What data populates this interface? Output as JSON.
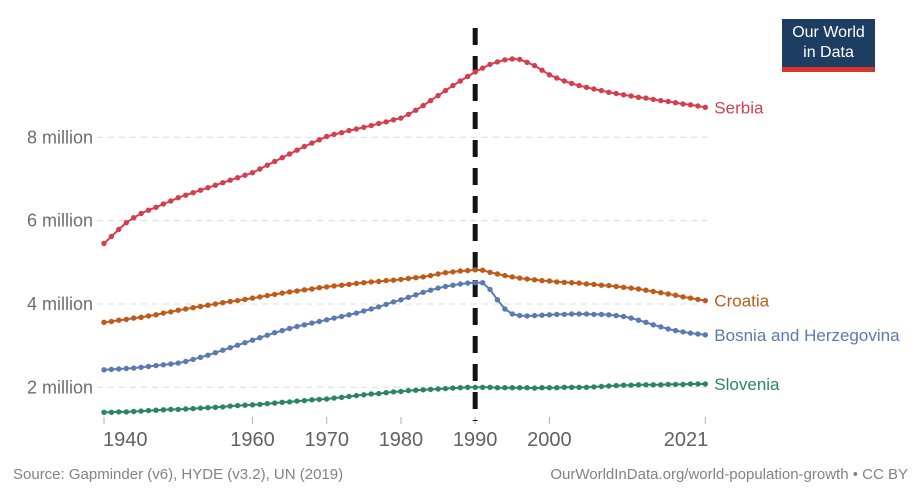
{
  "logo": {
    "line1": "Our World",
    "line2": "in Data",
    "bg": "#1d3d63",
    "accent": "#d8352a",
    "text_color": "#ffffff"
  },
  "footer": {
    "source": "Source: Gapminder (v6), HYDE (v3.2), UN (2019)",
    "attribution": "OurWorldInData.org/world-population-growth • CC BY"
  },
  "chart_data": {
    "type": "line",
    "title": "",
    "xlabel": "",
    "ylabel": "",
    "unit": "people (millions)",
    "grid": true,
    "legend_position": "end-of-line-labels",
    "x_range": [
      1940,
      2021
    ],
    "ylim_millions": [
      1.2,
      10.6
    ],
    "x_ticks": [
      1940,
      1960,
      1970,
      1980,
      1990,
      2000,
      2021
    ],
    "y_ticks": [
      {
        "value": 2,
        "label": "2 million"
      },
      {
        "value": 4,
        "label": "4 million"
      },
      {
        "value": 6,
        "label": "6 million"
      },
      {
        "value": 8,
        "label": "8 million"
      }
    ],
    "annotations": [
      {
        "type": "vline",
        "x": 1990,
        "style": "dashed",
        "color": "#141414"
      }
    ],
    "years": [
      1940,
      1941,
      1942,
      1943,
      1944,
      1945,
      1946,
      1947,
      1948,
      1949,
      1950,
      1951,
      1952,
      1953,
      1954,
      1955,
      1956,
      1957,
      1958,
      1959,
      1960,
      1961,
      1962,
      1963,
      1964,
      1965,
      1966,
      1967,
      1968,
      1969,
      1970,
      1971,
      1972,
      1973,
      1974,
      1975,
      1976,
      1977,
      1978,
      1979,
      1980,
      1981,
      1982,
      1983,
      1984,
      1985,
      1986,
      1987,
      1988,
      1989,
      1990,
      1991,
      1992,
      1993,
      1994,
      1995,
      1996,
      1997,
      1998,
      1999,
      2000,
      2001,
      2002,
      2003,
      2004,
      2005,
      2006,
      2007,
      2008,
      2009,
      2010,
      2011,
      2012,
      2013,
      2014,
      2015,
      2016,
      2017,
      2018,
      2019,
      2020,
      2021
    ],
    "series": [
      {
        "name": "Serbia",
        "color": "#d63e50",
        "values_millions": [
          5.45,
          5.62,
          5.79,
          5.95,
          6.07,
          6.17,
          6.25,
          6.32,
          6.4,
          6.47,
          6.55,
          6.61,
          6.67,
          6.73,
          6.79,
          6.85,
          6.91,
          6.97,
          7.03,
          7.09,
          7.15,
          7.24,
          7.33,
          7.42,
          7.51,
          7.6,
          7.69,
          7.78,
          7.86,
          7.94,
          8.02,
          8.07,
          8.11,
          8.16,
          8.2,
          8.24,
          8.28,
          8.33,
          8.37,
          8.42,
          8.46,
          8.55,
          8.65,
          8.76,
          8.88,
          9.0,
          9.12,
          9.24,
          9.35,
          9.46,
          9.57,
          9.66,
          9.75,
          9.81,
          9.86,
          9.88,
          9.87,
          9.8,
          9.72,
          9.61,
          9.5,
          9.42,
          9.35,
          9.29,
          9.24,
          9.2,
          9.16,
          9.12,
          9.08,
          9.05,
          9.02,
          8.99,
          8.96,
          8.94,
          8.91,
          8.88,
          8.86,
          8.83,
          8.8,
          8.78,
          8.75,
          8.72
        ]
      },
      {
        "name": "Croatia",
        "color": "#c05a19",
        "values_millions": [
          3.56,
          3.58,
          3.61,
          3.63,
          3.66,
          3.68,
          3.71,
          3.74,
          3.78,
          3.81,
          3.85,
          3.88,
          3.91,
          3.94,
          3.97,
          4.0,
          4.03,
          4.06,
          4.08,
          4.11,
          4.14,
          4.17,
          4.2,
          4.23,
          4.26,
          4.29,
          4.31,
          4.34,
          4.36,
          4.39,
          4.41,
          4.43,
          4.45,
          4.47,
          4.49,
          4.51,
          4.53,
          4.54,
          4.56,
          4.57,
          4.59,
          4.61,
          4.63,
          4.65,
          4.68,
          4.72,
          4.75,
          4.77,
          4.79,
          4.8,
          4.82,
          4.81,
          4.76,
          4.72,
          4.68,
          4.65,
          4.62,
          4.6,
          4.58,
          4.56,
          4.55,
          4.53,
          4.52,
          4.51,
          4.5,
          4.48,
          4.47,
          4.45,
          4.44,
          4.42,
          4.4,
          4.38,
          4.36,
          4.33,
          4.3,
          4.27,
          4.24,
          4.21,
          4.17,
          4.14,
          4.11,
          4.08
        ]
      },
      {
        "name": "Bosnia and Herzegovina",
        "color": "#5b7ab2",
        "values_millions": [
          2.42,
          2.43,
          2.44,
          2.45,
          2.46,
          2.48,
          2.5,
          2.52,
          2.54,
          2.56,
          2.58,
          2.62,
          2.67,
          2.72,
          2.77,
          2.83,
          2.89,
          2.95,
          3.01,
          3.07,
          3.13,
          3.19,
          3.25,
          3.31,
          3.36,
          3.41,
          3.46,
          3.5,
          3.54,
          3.58,
          3.62,
          3.66,
          3.7,
          3.74,
          3.78,
          3.83,
          3.88,
          3.93,
          3.99,
          4.05,
          4.1,
          4.16,
          4.22,
          4.28,
          4.33,
          4.38,
          4.42,
          4.45,
          4.48,
          4.5,
          4.51,
          4.51,
          4.35,
          4.1,
          3.88,
          3.76,
          3.72,
          3.71,
          3.72,
          3.73,
          3.74,
          3.75,
          3.75,
          3.76,
          3.76,
          3.76,
          3.75,
          3.75,
          3.74,
          3.72,
          3.7,
          3.66,
          3.61,
          3.56,
          3.5,
          3.45,
          3.4,
          3.36,
          3.33,
          3.3,
          3.28,
          3.26
        ]
      },
      {
        "name": "Slovenia",
        "color": "#2c8465",
        "values_millions": [
          1.4,
          1.4,
          1.41,
          1.41,
          1.42,
          1.43,
          1.44,
          1.45,
          1.46,
          1.47,
          1.47,
          1.48,
          1.49,
          1.5,
          1.51,
          1.52,
          1.53,
          1.55,
          1.56,
          1.57,
          1.58,
          1.59,
          1.61,
          1.62,
          1.64,
          1.65,
          1.67,
          1.68,
          1.7,
          1.71,
          1.72,
          1.74,
          1.76,
          1.78,
          1.8,
          1.82,
          1.84,
          1.85,
          1.87,
          1.89,
          1.9,
          1.92,
          1.93,
          1.94,
          1.95,
          1.96,
          1.97,
          1.98,
          1.99,
          2.0,
          2.0,
          2.0,
          2.0,
          1.99,
          1.99,
          1.99,
          1.99,
          1.99,
          1.98,
          1.99,
          1.99,
          1.99,
          2.0,
          2.0,
          2.0,
          2.0,
          2.01,
          2.02,
          2.03,
          2.04,
          2.05,
          2.05,
          2.06,
          2.06,
          2.06,
          2.06,
          2.07,
          2.07,
          2.07,
          2.08,
          2.08,
          2.08
        ]
      }
    ]
  }
}
